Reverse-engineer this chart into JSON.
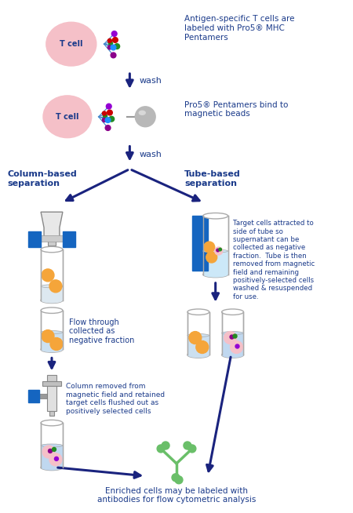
{
  "bg_color": "#ffffff",
  "text_color": "#1a3a8a",
  "arrow_color": "#1a237e",
  "title1": "Antigen-specific T cells are\nlabeled with Pro5® MHC\nPentamers",
  "title2": "Pro5® Pentamers bind to\nmagnetic beads",
  "label_wash1": "wash",
  "label_wash2": "wash",
  "label_col": "Column-based\nseparation",
  "label_tube": "Tube-based\nseparation",
  "label_flow": "Flow through\ncollected as\nnegative fraction",
  "label_column_removed": "Column removed from\nmagnetic field and retained\ntarget cells flushed out as\npositively selected cells",
  "label_target": "Target cells attracted to\nside of tube so\nsupernatant can be\ncollected as negative\nfraction.  Tube is then\nremoved from magnetic\nfield and remaining\npositively-selected cells\nwashed & resuspended\nfor use.",
  "label_enriched": "Enriched cells may be labeled with\nantibodies for flow cytometric analysis",
  "cell_color": "#f5c0c8",
  "bead_color": "#b8b8b8",
  "blue_block": "#1565c0",
  "orange_cell": "#f5a53a",
  "pink_cell": "#f5c0c8",
  "tube_fill": "#d8eef8",
  "col_gray": "#e8e8e8",
  "penta_colors": [
    "#8b008b",
    "#228b22",
    "#cc0000",
    "#9400d3",
    "#00008b",
    "#1e90ff"
  ],
  "penta_line_color": "#4488cc"
}
